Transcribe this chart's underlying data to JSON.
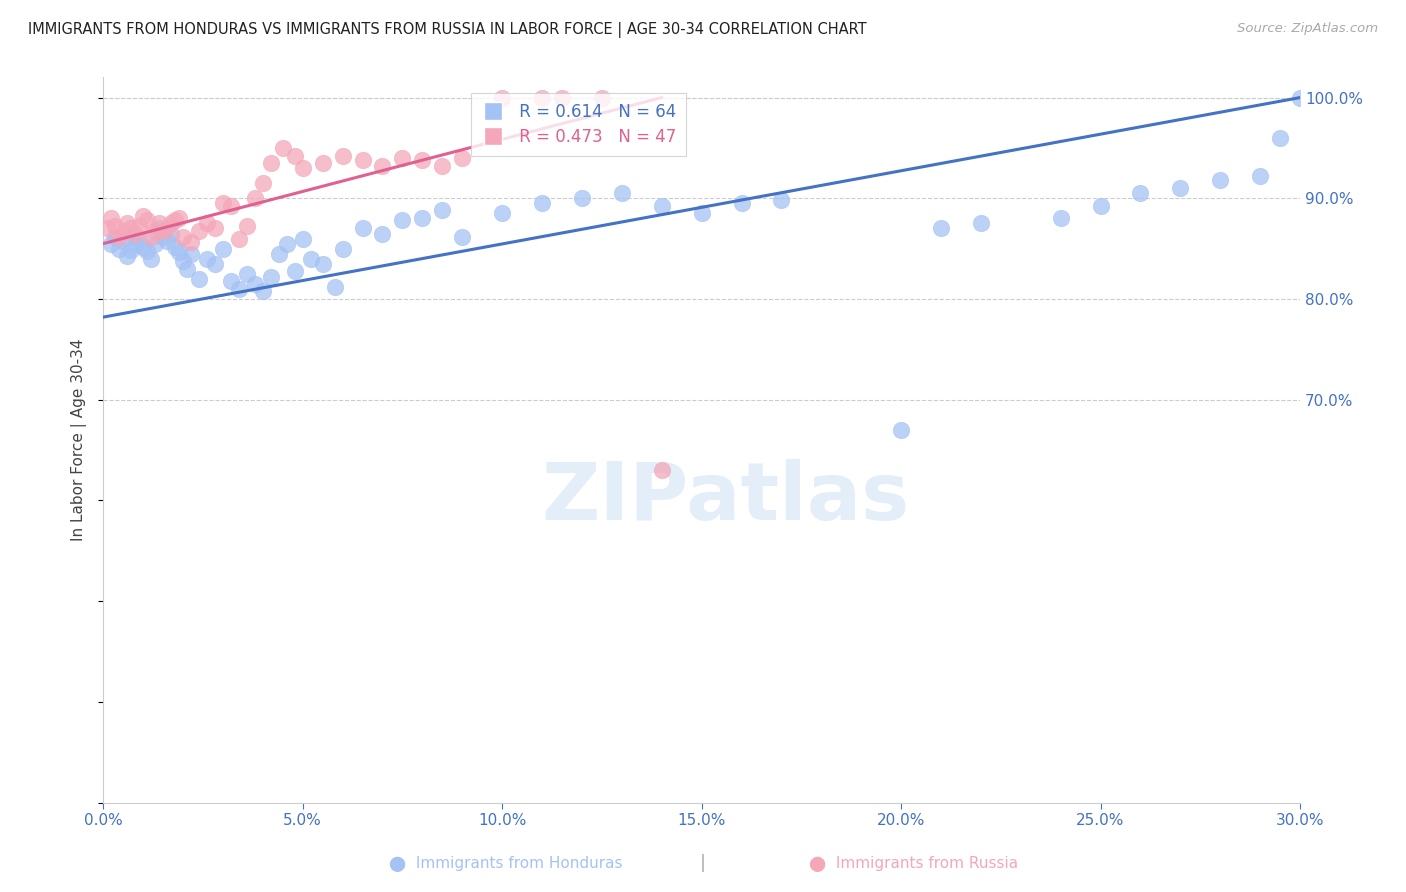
{
  "title": "IMMIGRANTS FROM HONDURAS VS IMMIGRANTS FROM RUSSIA IN LABOR FORCE | AGE 30-34 CORRELATION CHART",
  "source": "Source: ZipAtlas.com",
  "ylabel": "In Labor Force | Age 30-34",
  "xlim": [
    0.0,
    0.3
  ],
  "ylim": [
    0.3,
    1.02
  ],
  "yticks": [
    0.7,
    0.8,
    0.9,
    1.0
  ],
  "ytick_labels": [
    "70.0%",
    "80.0%",
    "90.0%",
    "100.0%"
  ],
  "xticks": [
    0.0,
    0.05,
    0.1,
    0.15,
    0.2,
    0.25,
    0.3
  ],
  "xtick_labels": [
    "0.0%",
    "5.0%",
    "10.0%",
    "15.0%",
    "20.0%",
    "25.0%",
    "30.0%"
  ],
  "honduras_color": "#a4c2f4",
  "russia_color": "#f4a7b9",
  "line_honduras_color": "#4472c4",
  "line_russia_color": "#e06090",
  "legend_r_honduras": "R = 0.614",
  "legend_n_honduras": "N = 64",
  "legend_r_russia": "R = 0.473",
  "legend_n_russia": "N = 47",
  "watermark": "ZIPatlas",
  "title_color": "#222222",
  "axis_color": "#4472c4",
  "grid_color": "#cccccc",
  "honduras_x": [
    0.002,
    0.003,
    0.004,
    0.005,
    0.006,
    0.007,
    0.008,
    0.009,
    0.01,
    0.011,
    0.012,
    0.013,
    0.014,
    0.015,
    0.016,
    0.017,
    0.018,
    0.019,
    0.02,
    0.021,
    0.022,
    0.024,
    0.026,
    0.028,
    0.03,
    0.032,
    0.034,
    0.036,
    0.038,
    0.04,
    0.042,
    0.044,
    0.046,
    0.048,
    0.05,
    0.052,
    0.055,
    0.058,
    0.06,
    0.065,
    0.07,
    0.075,
    0.08,
    0.085,
    0.09,
    0.1,
    0.11,
    0.12,
    0.13,
    0.14,
    0.15,
    0.16,
    0.17,
    0.2,
    0.21,
    0.22,
    0.24,
    0.25,
    0.26,
    0.27,
    0.28,
    0.29,
    0.295,
    0.3
  ],
  "honduras_y": [
    0.855,
    0.862,
    0.85,
    0.858,
    0.843,
    0.849,
    0.855,
    0.86,
    0.852,
    0.848,
    0.84,
    0.855,
    0.87,
    0.862,
    0.858,
    0.865,
    0.852,
    0.847,
    0.838,
    0.83,
    0.845,
    0.82,
    0.84,
    0.835,
    0.85,
    0.818,
    0.81,
    0.825,
    0.815,
    0.808,
    0.822,
    0.845,
    0.855,
    0.828,
    0.86,
    0.84,
    0.835,
    0.812,
    0.85,
    0.87,
    0.865,
    0.878,
    0.88,
    0.888,
    0.862,
    0.885,
    0.895,
    0.9,
    0.905,
    0.892,
    0.885,
    0.895,
    0.898,
    0.67,
    0.87,
    0.875,
    0.88,
    0.892,
    0.905,
    0.91,
    0.918,
    0.922,
    0.96,
    1.0
  ],
  "russia_x": [
    0.001,
    0.002,
    0.003,
    0.004,
    0.005,
    0.006,
    0.007,
    0.008,
    0.009,
    0.01,
    0.011,
    0.012,
    0.013,
    0.014,
    0.015,
    0.016,
    0.017,
    0.018,
    0.019,
    0.02,
    0.022,
    0.024,
    0.026,
    0.028,
    0.03,
    0.032,
    0.034,
    0.036,
    0.038,
    0.04,
    0.042,
    0.045,
    0.048,
    0.05,
    0.055,
    0.06,
    0.065,
    0.07,
    0.075,
    0.08,
    0.085,
    0.09,
    0.1,
    0.11,
    0.115,
    0.125,
    0.14
  ],
  "russia_y": [
    0.87,
    0.88,
    0.872,
    0.862,
    0.868,
    0.875,
    0.87,
    0.865,
    0.872,
    0.882,
    0.878,
    0.862,
    0.868,
    0.875,
    0.868,
    0.87,
    0.875,
    0.878,
    0.88,
    0.862,
    0.857,
    0.868,
    0.875,
    0.87,
    0.895,
    0.892,
    0.86,
    0.872,
    0.9,
    0.915,
    0.935,
    0.95,
    0.942,
    0.93,
    0.935,
    0.942,
    0.938,
    0.932,
    0.94,
    0.938,
    0.932,
    0.94,
    1.0,
    1.0,
    1.0,
    1.0,
    0.63
  ],
  "honduras_line_x": [
    0.0,
    0.3
  ],
  "honduras_line_y": [
    0.782,
    1.0
  ],
  "russia_line_x": [
    0.0,
    0.14
  ],
  "russia_line_y": [
    0.855,
    1.0
  ]
}
